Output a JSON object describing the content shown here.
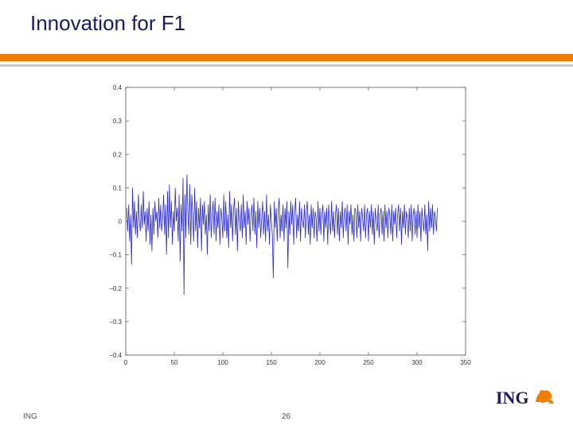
{
  "slide": {
    "title": "Innovation for F1",
    "footer_left": "ING",
    "page_number": "26",
    "logo_text": "ING"
  },
  "colors": {
    "accent": "#f07d00",
    "title": "#1a1a66",
    "line": "#2a2acc"
  },
  "chart_data": {
    "type": "line",
    "xlim": [
      0,
      350
    ],
    "ylim": [
      -0.4,
      0.4
    ],
    "xticks": [
      0,
      50,
      100,
      150,
      200,
      250,
      300,
      350
    ],
    "yticks": [
      0.4,
      0.3,
      0.2,
      0.1,
      0,
      -0.1,
      -0.2,
      -0.3,
      -0.4
    ],
    "ytick_labels": [
      "0.4",
      "0.3",
      "0.2",
      "0.1",
      "0",
      "−0.1",
      "−0.2",
      "−0.3",
      "−0.4"
    ],
    "grid": false,
    "series": [
      {
        "values": [
          0.04,
          -0.03,
          0.05,
          -0.06,
          0.02,
          -0.13,
          0.1,
          -0.02,
          0.06,
          -0.04,
          0.03,
          -0.05,
          0.08,
          0.0,
          -0.03,
          0.05,
          -0.02,
          0.09,
          -0.01,
          0.03,
          -0.06,
          0.04,
          -0.03,
          0.06,
          -0.07,
          0.02,
          -0.09,
          0.04,
          -0.04,
          0.06,
          0.0,
          0.03,
          -0.05,
          0.07,
          -0.02,
          0.05,
          -0.03,
          0.01,
          0.08,
          -0.04,
          0.05,
          -0.1,
          0.09,
          -0.05,
          0.11,
          -0.02,
          0.06,
          -0.07,
          0.03,
          -0.03,
          0.1,
          0.0,
          0.04,
          -0.06,
          0.08,
          -0.12,
          0.05,
          -0.03,
          0.13,
          -0.22,
          0.08,
          -0.05,
          0.14,
          0.03,
          -0.04,
          0.11,
          -0.07,
          0.08,
          0.02,
          -0.06,
          0.1,
          -0.03,
          0.06,
          -0.08,
          0.04,
          -0.02,
          0.07,
          -0.09,
          0.05,
          -0.01,
          0.06,
          -0.04,
          0.02,
          -0.1,
          0.05,
          -0.03,
          0.08,
          -0.05,
          0.02,
          0.06,
          -0.04,
          0.07,
          -0.06,
          0.03,
          -0.02,
          0.05,
          -0.07,
          0.04,
          0.01,
          -0.05,
          0.08,
          -0.03,
          0.06,
          -0.05,
          0.02,
          -0.08,
          0.09,
          -0.02,
          0.05,
          -0.06,
          0.03,
          0.07,
          -0.04,
          0.04,
          -0.09,
          0.06,
          0.0,
          -0.03,
          0.05,
          -0.05,
          0.08,
          -0.02,
          0.03,
          -0.07,
          0.06,
          -0.01,
          0.04,
          -0.06,
          0.02,
          0.05,
          -0.03,
          0.07,
          -0.04,
          0.03,
          -0.08,
          0.06,
          -0.02,
          0.04,
          -0.05,
          0.01,
          0.06,
          -0.04,
          0.03,
          -0.06,
          0.08,
          -0.03,
          0.02,
          -0.07,
          0.05,
          0.0,
          -0.04,
          -0.17,
          0.06,
          -0.02,
          0.04,
          -0.06,
          0.03,
          0.07,
          -0.05,
          0.02,
          -0.03,
          0.05,
          -0.06,
          0.04,
          -0.02,
          0.06,
          -0.14,
          0.03,
          -0.04,
          0.06,
          -0.01,
          0.05,
          -0.07,
          0.03,
          0.07,
          -0.05,
          0.02,
          -0.03,
          0.06,
          -0.06,
          0.04,
          0.0,
          -0.02,
          0.05,
          -0.05,
          0.03,
          0.06,
          -0.04,
          0.02,
          -0.07,
          0.05,
          -0.02,
          0.04,
          -0.05,
          0.03,
          0.01,
          -0.06,
          0.06,
          -0.03,
          0.04,
          -0.04,
          0.02,
          0.05,
          -0.06,
          0.03,
          -0.02,
          0.04,
          -0.07,
          0.05,
          0.0,
          -0.04,
          0.06,
          -0.03,
          0.03,
          -0.05,
          0.02,
          0.05,
          -0.04,
          0.04,
          -0.06,
          0.03,
          -0.02,
          0.06,
          -0.05,
          0.02,
          0.04,
          -0.03,
          0.05,
          -0.07,
          0.03,
          -0.01,
          0.05,
          -0.04,
          0.02,
          -0.06,
          0.04,
          0.03,
          -0.05,
          0.05,
          -0.02,
          0.03,
          -0.06,
          0.04,
          0.01,
          -0.03,
          0.05,
          -0.05,
          0.02,
          0.04,
          -0.06,
          0.03,
          -0.02,
          0.05,
          -0.04,
          0.03,
          -0.07,
          0.04,
          0.0,
          -0.03,
          0.05,
          -0.05,
          0.02,
          0.04,
          -0.04,
          0.03,
          -0.06,
          0.05,
          -0.02,
          0.03,
          -0.05,
          0.04,
          0.02,
          -0.04,
          0.05,
          -0.06,
          0.03,
          -0.01,
          0.04,
          -0.05,
          0.02,
          0.05,
          -0.03,
          0.04,
          -0.07,
          0.03,
          -0.02,
          0.05,
          -0.04,
          0.03,
          0.01,
          -0.05,
          0.04,
          -0.03,
          0.05,
          -0.06,
          0.02,
          0.04,
          -0.04,
          0.03,
          -0.05,
          0.05,
          -0.02,
          0.03,
          -0.06,
          0.04,
          0.0,
          -0.03,
          0.05,
          -0.04,
          0.02,
          -0.09,
          0.06,
          -0.03,
          0.04,
          -0.02,
          0.05,
          -0.04,
          0.03,
          0.01,
          -0.03,
          0.04
        ]
      }
    ]
  }
}
